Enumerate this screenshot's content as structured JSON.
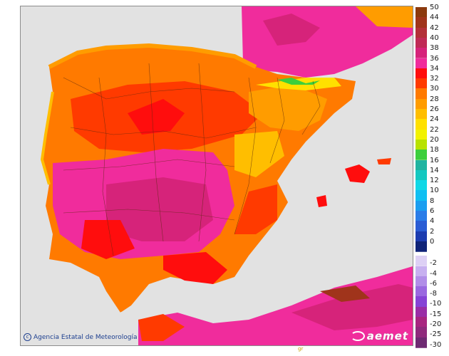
{
  "map": {
    "credit": "Agencia Estatal de Meteorología",
    "logo": "aemet",
    "tiny_mark": "gr"
  },
  "legend": {
    "positive": [
      {
        "label": "50",
        "color": "#8b3a0e"
      },
      {
        "label": "44",
        "color": "#a0341b"
      },
      {
        "label": "42",
        "color": "#b33038"
      },
      {
        "label": "40",
        "color": "#c02a56"
      },
      {
        "label": "38",
        "color": "#d6237a"
      },
      {
        "label": "36",
        "color": "#f02c9c"
      },
      {
        "label": "34",
        "color": "#ff0d0d"
      },
      {
        "label": "32",
        "color": "#ff3a00"
      },
      {
        "label": "30",
        "color": "#ff7a00"
      },
      {
        "label": "28",
        "color": "#ff9c00"
      },
      {
        "label": "26",
        "color": "#ffbe00"
      },
      {
        "label": "24",
        "color": "#ffe000"
      },
      {
        "label": "22",
        "color": "#f2f200"
      },
      {
        "label": "20",
        "color": "#b8e200"
      },
      {
        "label": "18",
        "color": "#3ccf3c"
      },
      {
        "label": "16",
        "color": "#20b4a0"
      },
      {
        "label": "14",
        "color": "#14c8c0"
      },
      {
        "label": "12",
        "color": "#10d8e6"
      },
      {
        "label": "10",
        "color": "#10bff2"
      },
      {
        "label": "8",
        "color": "#1a9ef0"
      },
      {
        "label": "6",
        "color": "#2a7de8"
      },
      {
        "label": "4",
        "color": "#2a5cd4"
      },
      {
        "label": "2",
        "color": "#1c3cb0"
      },
      {
        "label": "0",
        "color": "#0f2378"
      }
    ],
    "negative": [
      {
        "label": "-2",
        "color": "#ddd0f5"
      },
      {
        "label": "-4",
        "color": "#c7b0f0"
      },
      {
        "label": "-6",
        "color": "#b18ee8"
      },
      {
        "label": "-8",
        "color": "#9a69e0"
      },
      {
        "label": "-10",
        "color": "#8644d6"
      },
      {
        "label": "-15",
        "color": "#9a2ea6"
      },
      {
        "label": "-20",
        "color": "#a82680"
      },
      {
        "label": "-25",
        "color": "#8f2a7c"
      },
      {
        "label": "-30",
        "color": "#6e2a72"
      }
    ]
  }
}
